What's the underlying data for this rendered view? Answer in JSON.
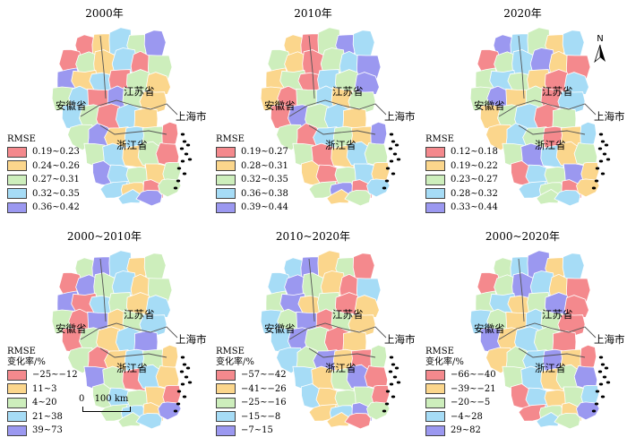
{
  "colors": [
    "#f4898d",
    "#fbd68c",
    "#cdeebc",
    "#a6dcf6",
    "#9b98f0"
  ],
  "panels": [
    {
      "title": "2000年",
      "legend_heading": [
        "RMSE"
      ],
      "classes": [
        "0.19~0.23",
        "0.24~0.26",
        "0.27~0.31",
        "0.32~0.35",
        "0.36~0.42"
      ],
      "labels": {
        "anhui": "安徽省",
        "jiangsu": "江苏省",
        "shanghai": "上海市",
        "zhejiang": "浙江省"
      }
    },
    {
      "title": "2010年",
      "legend_heading": [
        "RMSE"
      ],
      "classes": [
        "0.19~0.27",
        "0.28~0.31",
        "0.32~0.35",
        "0.36~0.38",
        "0.39~0.44"
      ],
      "labels": {
        "anhui": "安徽省",
        "jiangsu": "江苏省",
        "shanghai": "上海市",
        "zhejiang": "浙江省"
      }
    },
    {
      "title": "2020年",
      "legend_heading": [
        "RMSE"
      ],
      "classes": [
        "0.12~0.18",
        "0.19~0.22",
        "0.23~0.27",
        "0.28~0.32",
        "0.33~0.44"
      ],
      "labels": {
        "anhui": "安徽省",
        "jiangsu": "江苏省",
        "shanghai": "上海市",
        "zhejiang": "浙江省"
      }
    },
    {
      "title": "2000~2010年",
      "legend_heading": [
        "RMSE",
        "变化率/%"
      ],
      "classes": [
        "−25~−12",
        "11~3",
        "4~20",
        "21~38",
        "39~73"
      ],
      "labels": {
        "anhui": "安徽省",
        "jiangsu": "江苏省",
        "shanghai": "上海市",
        "zhejiang": "浙江省"
      }
    },
    {
      "title": "2010~2020年",
      "legend_heading": [
        "RMSE",
        "变化率/%"
      ],
      "classes": [
        "−57~−42",
        "−41~−26",
        "−25~−16",
        "−15~−8",
        "−7~15"
      ],
      "labels": {
        "anhui": "安徽省",
        "jiangsu": "江苏省",
        "shanghai": "上海市",
        "zhejiang": "浙江省"
      }
    },
    {
      "title": "2000~2020年",
      "legend_heading": [
        "RMSE",
        "变化率/%"
      ],
      "classes": [
        "−66~−40",
        "−39~−21",
        "−20~−5",
        "−4~28",
        "29~82"
      ],
      "labels": {
        "anhui": "安徽省",
        "jiangsu": "江苏省",
        "shanghai": "上海市",
        "zhejiang": "浙江省"
      }
    }
  ],
  "north_arrow": "N",
  "scale_bar": {
    "zero": "0",
    "distance": "100 km"
  },
  "region_classes": [
    [
      0,
      1,
      3,
      2,
      4,
      0,
      2,
      1,
      3,
      0,
      2,
      4,
      1,
      3,
      0,
      2,
      1,
      2,
      3,
      0,
      4,
      2,
      1,
      3,
      2,
      0,
      3,
      1,
      2,
      4,
      1,
      3,
      2,
      0,
      2,
      3,
      1,
      2,
      0,
      4,
      3,
      2,
      1,
      2,
      3,
      1,
      0,
      2,
      3,
      4,
      2,
      1
    ],
    [
      1,
      0,
      2,
      4,
      3,
      2,
      1,
      0,
      2,
      3,
      4,
      1,
      2,
      0,
      3,
      2,
      4,
      1,
      0,
      2,
      3,
      1,
      2,
      0,
      4,
      2,
      3,
      1,
      2,
      0,
      3,
      2,
      1,
      4,
      2,
      0,
      1,
      3,
      2,
      1,
      0,
      2,
      3,
      1,
      2,
      4,
      0,
      3,
      1,
      2,
      2,
      1
    ],
    [
      4,
      3,
      2,
      1,
      3,
      0,
      2,
      3,
      4,
      1,
      0,
      2,
      3,
      2,
      1,
      0,
      3,
      2,
      4,
      1,
      2,
      0,
      3,
      1,
      2,
      3,
      0,
      2,
      1,
      3,
      2,
      0,
      1,
      3,
      2,
      4,
      3,
      1,
      2,
      0,
      3,
      2,
      4,
      1,
      3,
      2,
      0,
      1,
      2,
      3,
      2,
      4
    ],
    [
      2,
      4,
      3,
      1,
      2,
      0,
      4,
      2,
      3,
      1,
      2,
      4,
      0,
      3,
      2,
      1,
      3,
      2,
      0,
      4,
      1,
      2,
      3,
      0,
      2,
      1,
      3,
      4,
      2,
      0,
      1,
      3,
      2,
      1,
      4,
      2,
      0,
      3,
      1,
      2,
      3,
      2,
      1,
      0,
      2,
      3,
      1,
      4,
      2,
      3,
      1,
      0
    ],
    [
      3,
      4,
      1,
      2,
      0,
      3,
      4,
      2,
      1,
      0,
      3,
      2,
      4,
      1,
      2,
      0,
      1,
      3,
      2,
      4,
      0,
      2,
      1,
      3,
      4,
      2,
      0,
      1,
      3,
      2,
      4,
      1,
      0,
      2,
      3,
      1,
      2,
      4,
      0,
      3,
      1,
      2,
      2,
      0,
      1,
      3,
      4,
      2,
      1,
      0,
      3,
      2
    ],
    [
      2,
      3,
      4,
      1,
      3,
      0,
      2,
      4,
      3,
      1,
      0,
      2,
      3,
      1,
      2,
      4,
      0,
      3,
      2,
      1,
      3,
      2,
      0,
      4,
      1,
      3,
      2,
      0,
      1,
      2,
      3,
      4,
      1,
      0,
      2,
      3,
      1,
      2,
      4,
      0,
      3,
      1,
      2,
      3,
      0,
      2,
      1,
      4,
      3,
      2,
      1,
      0
    ]
  ]
}
